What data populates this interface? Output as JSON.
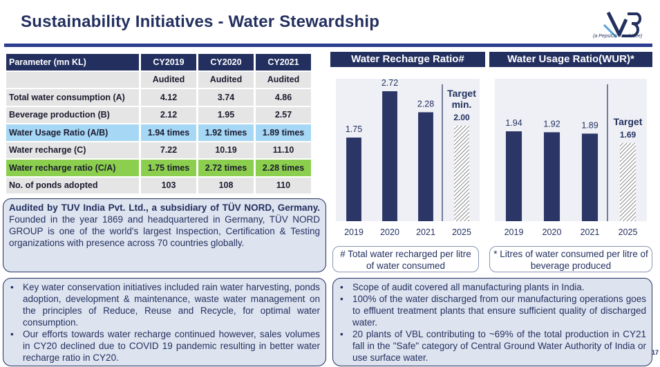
{
  "header": {
    "title": "Sustainability Initiatives - Water Stewardship",
    "logo_text": "VB",
    "logo_sub": "(a PepsiCo franchisee)"
  },
  "table": {
    "columns": [
      "Parameter (mn KL)",
      "CY2019",
      "CY2020",
      "CY2021"
    ],
    "rows": [
      {
        "label": "",
        "v": [
          "Audited",
          "Audited",
          "Audited"
        ],
        "style": "plain"
      },
      {
        "label": "Total water consumption (A)",
        "v": [
          "4.12",
          "3.74",
          "4.86"
        ],
        "style": "plain"
      },
      {
        "label": "Beverage production (B)",
        "v": [
          "2.12",
          "1.95",
          "2.57"
        ],
        "style": "plain"
      },
      {
        "label": "Water Usage Ratio (A/B)",
        "v": [
          "1.94 times",
          "1.92 times",
          "1.89 times"
        ],
        "style": "blue"
      },
      {
        "label": "Water recharge (C)",
        "v": [
          "7.22",
          "10.19",
          "11.10"
        ],
        "style": "plain"
      },
      {
        "label": "Water recharge ratio (C/A)",
        "v": [
          "1.75 times",
          "2.72 times",
          "2.28 times"
        ],
        "style": "green"
      },
      {
        "label": "No. of ponds adopted",
        "v": [
          "103",
          "108",
          "110"
        ],
        "style": "plain"
      }
    ]
  },
  "audit_box": {
    "bold": "Audited by TUV India Pvt. Ltd., a subsidiary of TÜV NORD, Germany.",
    "text": " Founded in the year 1869 and headquartered in Germany, TÜV NORD GROUP is one of the world's largest Inspection, Certification & Testing organizations with presence across 70 countries globally."
  },
  "bullets_left": [
    "Key water conservation initiatives included rain water harvesting, ponds adoption, development & maintenance, waste water management on the principles of Reduce, Reuse and Recycle, for optimal water consumption.",
    "Our efforts towards water recharge continued however, sales volumes in CY20 declined due to COVID 19 pandemic resulting in better water recharge ratio in CY20."
  ],
  "bullets_right": [
    "Scope of audit covered all manufacturing plants in India.",
    "100% of the water discharged from our manufacturing operations goes to effluent treatment plants that ensure sufficient quality of discharged water.",
    "20 plants of VBL contributing to ~69% of the total production in CY21 fall in the \"Safe\" category of Central Ground Water Authority of India or use surface water."
  ],
  "notes": {
    "recharge": "# Total water recharged per litre of water consumed",
    "usage": "* Litres of water consumed per litre of beverage produced"
  },
  "page_number": "17",
  "colors": {
    "navy": "#23305f",
    "bar": "#2b3566",
    "blue_row": "#a6d7f5",
    "green_row": "#8ccf4e",
    "grey_row": "#e5e5e5"
  },
  "chart_data": [
    {
      "type": "bar",
      "title": "Water Recharge Ratio#",
      "categories": [
        "2019",
        "2020",
        "2021",
        "2025"
      ],
      "values": [
        1.75,
        2.72,
        2.28,
        2.0
      ],
      "value_labels": [
        "1.75",
        "2.72",
        "2.28",
        "2.00"
      ],
      "target_label": "Target min.",
      "target_index": 3
    },
    {
      "type": "bar",
      "title": "Water Usage Ratio(WUR)*",
      "categories": [
        "2019",
        "2020",
        "2021",
        "2025"
      ],
      "values": [
        1.94,
        1.92,
        1.89,
        1.69
      ],
      "value_labels": [
        "1.94",
        "1.92",
        "1.89",
        "1.69"
      ],
      "target_label": "Target",
      "target_index": 3
    }
  ]
}
